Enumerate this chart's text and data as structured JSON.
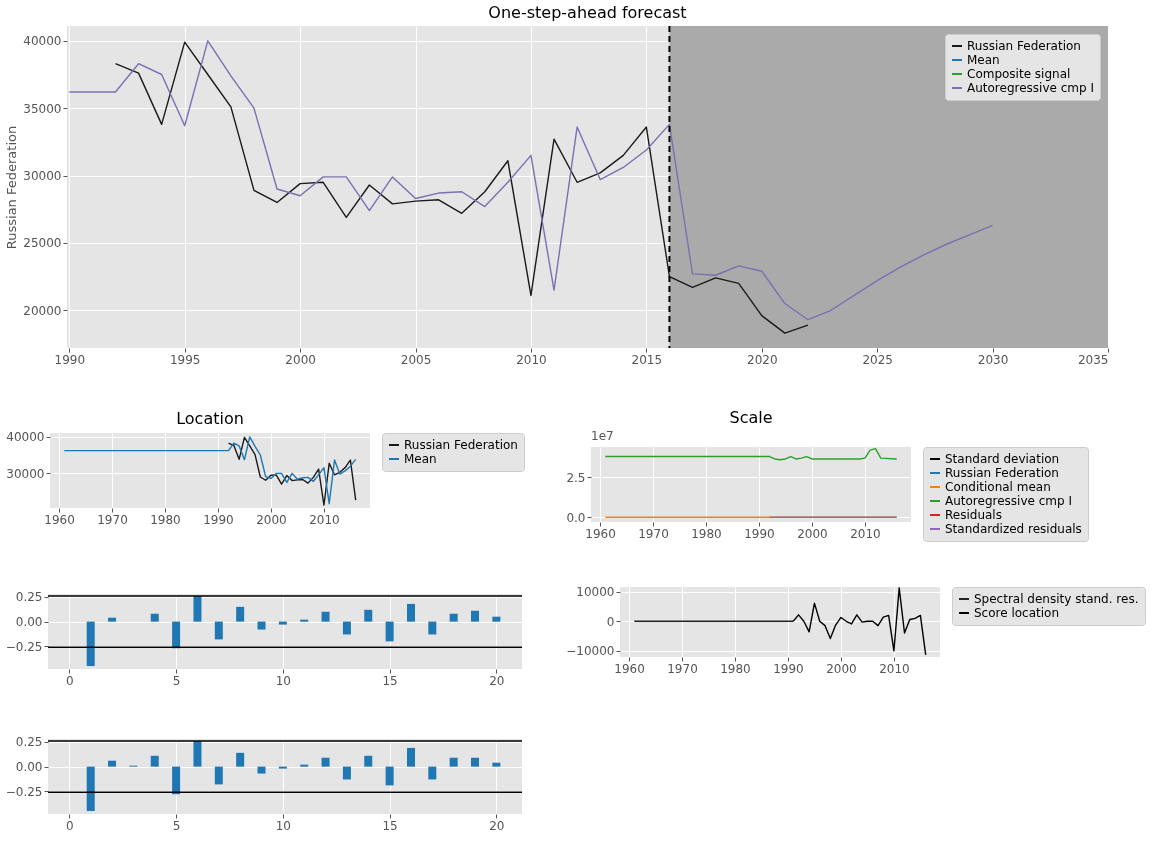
{
  "chart_data": [
    {
      "type": "line",
      "title": "One-step-ahead forecast",
      "ylabel": "Russian Federation",
      "xlim": [
        1989.9,
        2035
      ],
      "ylim": [
        17200,
        41100
      ],
      "xticks": [
        1990,
        1995,
        2000,
        2005,
        2010,
        2015,
        2020,
        2025,
        2030,
        2035
      ],
      "yticks": [
        20000,
        25000,
        30000,
        35000,
        40000
      ],
      "grid": true,
      "legend": "top right",
      "ref_lines": [
        {
          "axis": "x",
          "value": 2016,
          "color": "#000000",
          "line_style": "dashed"
        }
      ],
      "bands": [
        {
          "axis": "x",
          "from": 2016,
          "to": 2035,
          "color": "#aaaaaa"
        }
      ],
      "series": [
        {
          "name": "Russian Federation",
          "color": "#1a1a1a",
          "x": [
            1992,
            1993,
            1994,
            1995,
            1996,
            1997,
            1998,
            1999,
            2000,
            2001,
            2002,
            2003,
            2004,
            2005,
            2006,
            2007,
            2008,
            2009,
            2010,
            2011,
            2012,
            2013,
            2014,
            2015,
            2016,
            2017,
            2018,
            2019,
            2020,
            2021,
            2022
          ],
          "values": [
            38300,
            37600,
            33800,
            39900,
            37500,
            35100,
            28900,
            28000,
            29400,
            29500,
            26900,
            29300,
            27900,
            28100,
            28200,
            27200,
            28800,
            31100,
            21100,
            32700,
            29500,
            30200,
            31500,
            33600,
            22500,
            21700,
            22400,
            22000,
            19600,
            18300,
            18900
          ]
        },
        {
          "name": "Mean",
          "color": "#1f77b4",
          "values": [
            null
          ]
        },
        {
          "name": "Composite signal",
          "color": "#2ca02c",
          "values": [
            null
          ]
        },
        {
          "name": "Autoregressive cmp I",
          "color": "#7a70b2",
          "x": [
            1990,
            1991,
            1992,
            1993,
            1994,
            1995,
            1996,
            1997,
            1998,
            1999,
            2000,
            2001,
            2002,
            2003,
            2004,
            2005,
            2006,
            2007,
            2008,
            2009,
            2010,
            2011,
            2012,
            2013,
            2014,
            2015,
            2016,
            2017,
            2018,
            2019,
            2020,
            2021,
            2022,
            2023,
            2024,
            2025,
            2026,
            2027,
            2028,
            2029,
            2030
          ],
          "values": [
            36200,
            36200,
            36200,
            38300,
            37500,
            33700,
            40000,
            37400,
            35000,
            29000,
            28500,
            29900,
            29900,
            27400,
            29900,
            28300,
            28700,
            28800,
            27700,
            29500,
            31500,
            21500,
            33600,
            29700,
            30600,
            31900,
            33800,
            22700,
            22600,
            23300,
            22900,
            20500,
            19300,
            20000,
            21100,
            22200,
            23200,
            24100,
            24900,
            25600,
            26300
          ]
        }
      ]
    },
    {
      "type": "line",
      "title": "Location",
      "xlim": [
        1958.3,
        2018.7
      ],
      "ylim": [
        20300,
        41100
      ],
      "xticks": [
        1960,
        1970,
        1980,
        1990,
        2000,
        2010
      ],
      "yticks": [
        30000,
        40000
      ],
      "grid": true,
      "legend": "right",
      "series": [
        {
          "name": "Russian Federation",
          "color": "#1a1a1a",
          "x": [
            1992,
            1993,
            1994,
            1995,
            1996,
            1997,
            1998,
            1999,
            2000,
            2001,
            2002,
            2003,
            2004,
            2005,
            2006,
            2007,
            2008,
            2009,
            2010,
            2011,
            2012,
            2013,
            2014,
            2015,
            2016
          ],
          "values": [
            38300,
            37600,
            33800,
            39900,
            37500,
            35100,
            28900,
            28000,
            29400,
            29500,
            26900,
            29300,
            27900,
            28100,
            28200,
            27200,
            28800,
            31100,
            21100,
            32700,
            29500,
            30200,
            31500,
            33600,
            22500
          ]
        },
        {
          "name": "Mean",
          "color": "#1f77b4",
          "x": [
            1961,
            1992,
            1993,
            1994,
            1995,
            1996,
            1997,
            1998,
            1999,
            2000,
            2001,
            2002,
            2003,
            2004,
            2005,
            2006,
            2007,
            2008,
            2009,
            2010,
            2011,
            2012,
            2013,
            2014,
            2015,
            2016
          ],
          "values": [
            36200,
            36200,
            38300,
            37500,
            33700,
            40000,
            37400,
            35000,
            29000,
            28500,
            29900,
            29900,
            27400,
            29900,
            28300,
            28700,
            28800,
            27700,
            29500,
            31500,
            21500,
            33600,
            29700,
            30600,
            31900,
            33800
          ]
        }
      ]
    },
    {
      "type": "line",
      "title": "Scale",
      "annotations": [
        "1e7"
      ],
      "xlim": [
        1958.3,
        2018.7
      ],
      "ylim": [
        -0.3,
        4.4
      ],
      "xticks": [
        1960,
        1970,
        1980,
        1990,
        2000,
        2010
      ],
      "yticks": [
        {
          "value": 0,
          "label": "0.0"
        },
        2.5
      ],
      "grid": true,
      "legend": "right",
      "series": [
        {
          "name": "Standard deviation",
          "color": "#000000",
          "values": [
            null
          ]
        },
        {
          "name": "Russian Federation",
          "color": "#1f77b4",
          "values": [
            null
          ]
        },
        {
          "name": "Conditional mean",
          "color": "#ff7f0e",
          "x": [
            1961,
            2016
          ],
          "values": [
            0,
            0
          ]
        },
        {
          "name": "Autoregressive cmp I",
          "color": "#2ca02c",
          "x": [
            1961,
            1992,
            1993,
            1994,
            1995,
            1996,
            1997,
            1998,
            1999,
            2000,
            2001,
            2009,
            2010,
            2011,
            2012,
            2013,
            2016
          ],
          "values": [
            3.8,
            3.8,
            3.65,
            3.6,
            3.65,
            3.8,
            3.65,
            3.7,
            3.8,
            3.65,
            3.65,
            3.65,
            3.7,
            4.2,
            4.3,
            3.7,
            3.65
          ]
        },
        {
          "name": "Residuals",
          "color": "#d62728",
          "values": [
            null
          ]
        },
        {
          "name": "Standardized residuals",
          "color": "#9467bd",
          "x": [
            1992,
            2016
          ],
          "values": [
            0,
            0
          ]
        }
      ]
    },
    {
      "type": "bar",
      "x": [
        1,
        2,
        3,
        4,
        5,
        6,
        7,
        8,
        9,
        10,
        11,
        12,
        13,
        14,
        15,
        16,
        17,
        18,
        19,
        20
      ],
      "values": [
        -0.45,
        0.04,
        0,
        0.08,
        -0.27,
        0.26,
        -0.18,
        0.15,
        -0.08,
        -0.03,
        0.02,
        0.1,
        -0.13,
        0.12,
        -0.2,
        0.18,
        -0.13,
        0.08,
        0.11,
        0.05
      ],
      "color": "#1f77b4",
      "xlim": [
        -1,
        21.2
      ],
      "ylim": [
        -0.48,
        0.28
      ],
      "xticks": [
        0,
        5,
        10,
        15,
        20
      ],
      "yticks": [
        {
          "value": -0.25,
          "label": "−0.25"
        },
        {
          "value": 0,
          "label": "0.00"
        },
        0.25
      ],
      "grid": true,
      "ref_lines": [
        {
          "axis": "y",
          "value": 0.26,
          "color": "#000000"
        },
        {
          "axis": "y",
          "value": -0.26,
          "color": "#000000"
        }
      ]
    },
    {
      "type": "line",
      "xlim": [
        1958.3,
        2018.7
      ],
      "ylim": [
        -12200,
        11700
      ],
      "xticks": [
        1960,
        1970,
        1980,
        1990,
        2000,
        2010
      ],
      "yticks": [
        {
          "value": -10000,
          "label": "−10000"
        },
        0,
        10000
      ],
      "grid": true,
      "legend": "right",
      "series": [
        {
          "name": "Spectral density stand. res.",
          "color": "#222222",
          "x": [
            1961,
            1991
          ],
          "values": [
            0,
            0
          ]
        },
        {
          "name": "Score location",
          "color": "#000000",
          "x": [
            1991,
            1992,
            1993,
            1994,
            1995,
            1996,
            1997,
            1998,
            1999,
            2000,
            2001,
            2002,
            2003,
            2004,
            2005,
            2006,
            2007,
            2008,
            2009,
            2010,
            2011,
            2012,
            2013,
            2014,
            2015,
            2016
          ],
          "values": [
            0,
            2200,
            0,
            -3600,
            6200,
            0,
            -1500,
            -5900,
            -1300,
            1300,
            0,
            -900,
            2200,
            -300,
            0,
            0,
            -1500,
            1400,
            2000,
            -10100,
            11400,
            -4000,
            600,
            1000,
            2000,
            -11500
          ]
        }
      ]
    },
    {
      "type": "bar",
      "x": [
        1,
        2,
        3,
        4,
        5,
        6,
        7,
        8,
        9,
        10,
        11,
        12,
        13,
        14,
        15,
        16,
        17,
        18,
        19,
        20
      ],
      "values": [
        -0.45,
        0.06,
        0.01,
        0.11,
        -0.28,
        0.26,
        -0.18,
        0.14,
        -0.07,
        -0.02,
        0.02,
        0.09,
        -0.13,
        0.11,
        -0.19,
        0.19,
        -0.13,
        0.09,
        0.09,
        0.04
      ],
      "color": "#1f77b4",
      "xlim": [
        -1,
        21.2
      ],
      "ylim": [
        -0.48,
        0.28
      ],
      "xticks": [
        0,
        5,
        10,
        15,
        20
      ],
      "yticks": [
        {
          "value": -0.25,
          "label": "−0.25"
        },
        {
          "value": 0,
          "label": "0.00"
        },
        0.25
      ],
      "grid": true,
      "ref_lines": [
        {
          "axis": "y",
          "value": 0.26,
          "color": "#000000"
        },
        {
          "axis": "y",
          "value": -0.26,
          "color": "#000000"
        }
      ]
    }
  ]
}
